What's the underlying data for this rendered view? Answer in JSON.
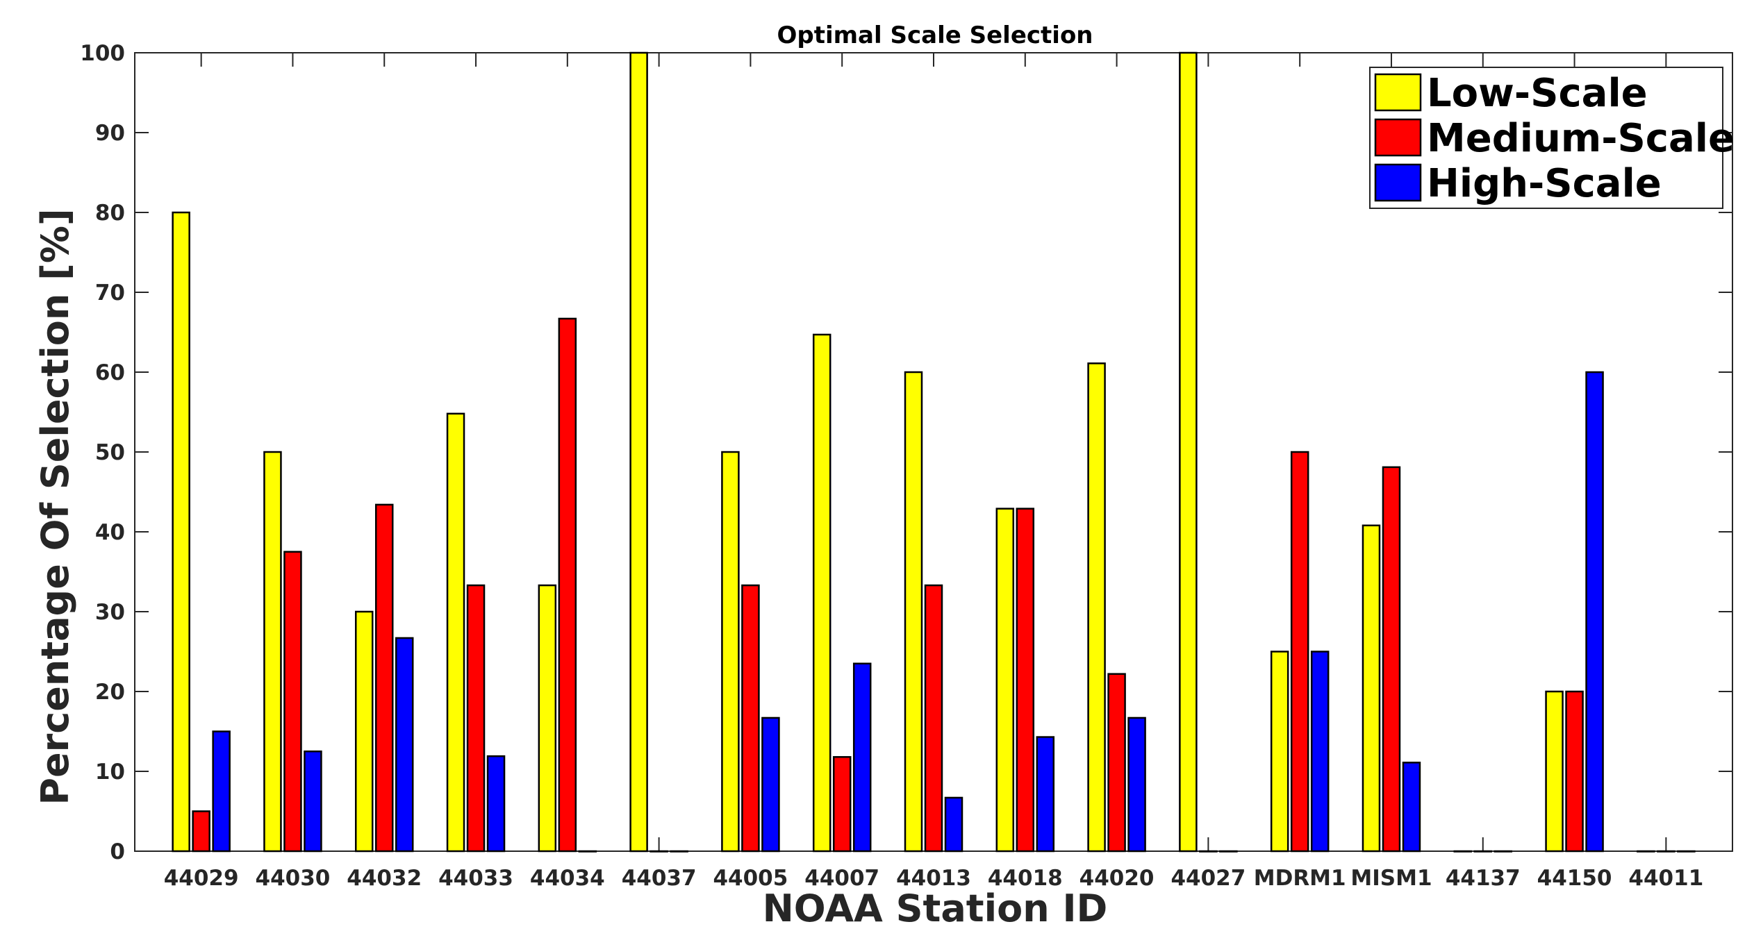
{
  "chart_data": {
    "type": "bar",
    "title": "Optimal Scale Selection",
    "xlabel": "NOAA Station ID",
    "ylabel": "Percentage Of Selection [%]",
    "ylim": [
      0,
      100
    ],
    "yticks": [
      0,
      10,
      20,
      30,
      40,
      50,
      60,
      70,
      80,
      90,
      100
    ],
    "legend_position": "top-right",
    "categories": [
      "44029",
      "44030",
      "44032",
      "44033",
      "44034",
      "44037",
      "44005",
      "44007",
      "44013",
      "44018",
      "44020",
      "44027",
      "MDRM1",
      "MISM1",
      "44137",
      "44150",
      "44011"
    ],
    "series": [
      {
        "name": "Low-Scale",
        "color": "#ffff00",
        "values": [
          80,
          50,
          30,
          54.8,
          33.3,
          100,
          50,
          64.7,
          60,
          42.9,
          61.1,
          100,
          25,
          40.8,
          0,
          20,
          0
        ]
      },
      {
        "name": "Medium-Scale",
        "color": "#ff0000",
        "values": [
          5,
          37.5,
          43.4,
          33.3,
          66.7,
          0,
          33.3,
          11.8,
          33.3,
          42.9,
          22.2,
          0,
          50,
          48.1,
          0,
          20,
          0
        ]
      },
      {
        "name": "High-Scale",
        "color": "#0000ff",
        "values": [
          15,
          12.5,
          26.7,
          11.9,
          0,
          0,
          16.7,
          23.5,
          6.7,
          14.3,
          16.7,
          0,
          25,
          11.1,
          0,
          60,
          0
        ]
      }
    ]
  }
}
